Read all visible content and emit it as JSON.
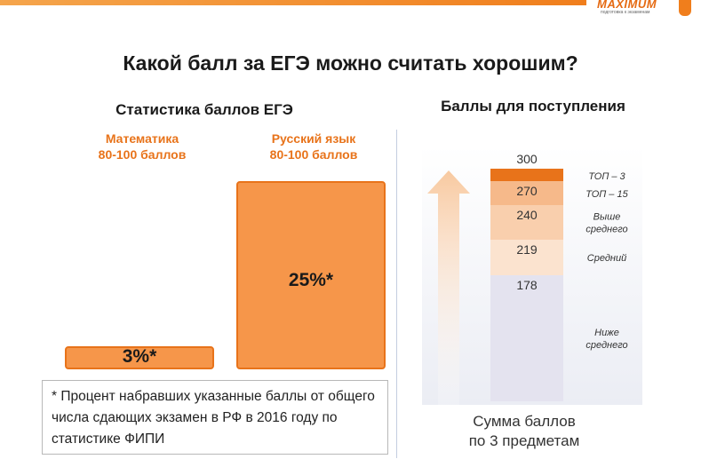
{
  "header": {
    "logo": {
      "name": "MAXIMUM",
      "tagline": "подготовка к экзаменам"
    },
    "title": "Какой балл за ЕГЭ можно считать хорошим?"
  },
  "left_panel": {
    "subtitle": "Статистика баллов ЕГЭ",
    "footnote": "* Процент набравших указанные баллы от общего числа сдающих экзамен в РФ в 2016 году по статистике ФИПИ"
  },
  "right_panel": {
    "subtitle": "Баллы для поступления",
    "axis_label": [
      "Сумма баллов",
      "по 3 предметам"
    ]
  },
  "colors": {
    "accent": "#e8731a",
    "bar_fill": "#f6964a",
    "top3": "#e8731a",
    "top15": "#f6b98a",
    "above_avg": "#f9cfad",
    "average": "#fbe3cf",
    "below_avg": "#e4e3ef"
  },
  "chart_data": [
    {
      "type": "bar",
      "title": "Статистика баллов ЕГЭ",
      "categories": [
        {
          "name": "Математика",
          "range": "80-100 баллов"
        },
        {
          "name": "Русский язык",
          "range": "80-100 баллов"
        }
      ],
      "values": [
        3,
        25
      ],
      "labels": [
        "3%*",
        "25%*"
      ],
      "ylim": [
        0,
        25
      ],
      "unit": "%"
    },
    {
      "type": "bar",
      "subtype": "stacked-scale",
      "title": "Баллы для поступления",
      "xlabel": "Сумма баллов по 3 предметам",
      "ylim": [
        0,
        300
      ],
      "max_label": "300",
      "segments": [
        {
          "value": 300,
          "threshold": null,
          "label": [
            "ТОП – 3"
          ],
          "color_key": "top3"
        },
        {
          "value": 270,
          "threshold": "270",
          "label": [
            "ТОП – 15"
          ],
          "color_key": "top15"
        },
        {
          "value": 240,
          "threshold": "240",
          "label": [
            "Выше",
            "среднего"
          ],
          "color_key": "above_avg"
        },
        {
          "value": 219,
          "threshold": "219",
          "label": [
            "Средний"
          ],
          "color_key": "average"
        },
        {
          "value": 178,
          "threshold": "178",
          "label": [
            "Ниже",
            "среднего"
          ],
          "color_key": "below_avg"
        }
      ]
    }
  ]
}
